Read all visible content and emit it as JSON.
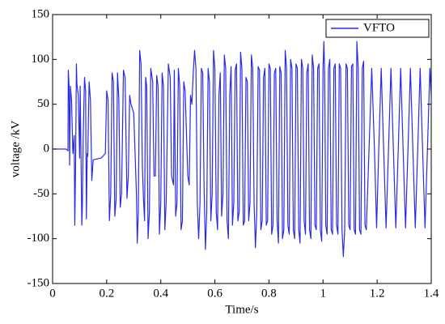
{
  "chart_data": {
    "type": "line",
    "xlabel": "Time/s",
    "ylabel": "voltage /kV",
    "xlim": [
      0,
      1.4
    ],
    "ylim": [
      -150,
      150
    ],
    "xticks": [
      0,
      0.2,
      0.4,
      0.6,
      0.8,
      1,
      1.2,
      1.4
    ],
    "yticks": [
      -150,
      -100,
      -50,
      0,
      50,
      100,
      150
    ],
    "grid": false,
    "legend": "upper right",
    "series": [
      {
        "name": "VFTO",
        "color": "#2a2ae6",
        "x": [
          0,
          0.05,
          0.057,
          0.058,
          0.061,
          0.063,
          0.066,
          0.07,
          0.075,
          0.08,
          0.082,
          0.085,
          0.088,
          0.09,
          0.095,
          0.1,
          0.102,
          0.105,
          0.108,
          0.11,
          0.113,
          0.118,
          0.122,
          0.125,
          0.128,
          0.13,
          0.135,
          0.14,
          0.145,
          0.15,
          0.18,
          0.195,
          0.2,
          0.205,
          0.21,
          0.215,
          0.22,
          0.225,
          0.23,
          0.235,
          0.24,
          0.245,
          0.25,
          0.255,
          0.262,
          0.268,
          0.275,
          0.28,
          0.285,
          0.29,
          0.3,
          0.31,
          0.313,
          0.317,
          0.322,
          0.327,
          0.332,
          0.336,
          0.34,
          0.344,
          0.348,
          0.353,
          0.358,
          0.363,
          0.37,
          0.375,
          0.38,
          0.385,
          0.39,
          0.395,
          0.4,
          0.405,
          0.41,
          0.415,
          0.42,
          0.428,
          0.435,
          0.44,
          0.447,
          0.45,
          0.455,
          0.46,
          0.465,
          0.47,
          0.475,
          0.48,
          0.485,
          0.49,
          0.5,
          0.505,
          0.51,
          0.515,
          0.52,
          0.525,
          0.53,
          0.535,
          0.54,
          0.545,
          0.55,
          0.555,
          0.56,
          0.565,
          0.57,
          0.575,
          0.58,
          0.585,
          0.59,
          0.595,
          0.6,
          0.605,
          0.61,
          0.615,
          0.62,
          0.625,
          0.63,
          0.635,
          0.64,
          0.645,
          0.65,
          0.655,
          0.66,
          0.665,
          0.67,
          0.675,
          0.68,
          0.685,
          0.69,
          0.695,
          0.7,
          0.705,
          0.71,
          0.715,
          0.72,
          0.725,
          0.73,
          0.735,
          0.74,
          0.745,
          0.75,
          0.755,
          0.76,
          0.765,
          0.77,
          0.775,
          0.78,
          0.785,
          0.79,
          0.795,
          0.8,
          0.805,
          0.81,
          0.815,
          0.82,
          0.825,
          0.83,
          0.835,
          0.84,
          0.845,
          0.85,
          0.855,
          0.86,
          0.865,
          0.87,
          0.875,
          0.88,
          0.885,
          0.89,
          0.895,
          0.9,
          0.905,
          0.91,
          0.915,
          0.92,
          0.925,
          0.93,
          0.935,
          0.94,
          0.945,
          0.95,
          0.955,
          0.96,
          0.965,
          0.97,
          0.975,
          0.98,
          0.985,
          0.99,
          0.995,
          1.0,
          1.003,
          1.006,
          1.01,
          1.015,
          1.02,
          1.025,
          1.03,
          1.035,
          1.04,
          1.045,
          1.05,
          1.055,
          1.06,
          1.065,
          1.07,
          1.075,
          1.08,
          1.085,
          1.09,
          1.095,
          1.1,
          1.105,
          1.11,
          1.115,
          1.12,
          1.125,
          1.13,
          1.135,
          1.14,
          1.145,
          1.15,
          1.155,
          1.16,
          1.17,
          1.18,
          1.19,
          1.198,
          1.206,
          1.215,
          1.224,
          1.233,
          1.242,
          1.251,
          1.26,
          1.269,
          1.278,
          1.287,
          1.296,
          1.305,
          1.314,
          1.323,
          1.332,
          1.341,
          1.35,
          1.359,
          1.368,
          1.377,
          1.386,
          1.395,
          1.4
        ],
        "values": [
          0,
          0,
          -2,
          88,
          70,
          -18,
          70,
          55,
          -5,
          15,
          -85,
          -20,
          95,
          72,
          60,
          -10,
          70,
          -5,
          -85,
          -65,
          10,
          80,
          65,
          -78,
          -5,
          -8,
          75,
          55,
          -35,
          -12,
          -10,
          -5,
          65,
          55,
          -80,
          -50,
          85,
          75,
          -75,
          -55,
          85,
          55,
          -65,
          -50,
          88,
          80,
          -55,
          -30,
          60,
          50,
          40,
          -50,
          -105,
          -70,
          110,
          95,
          -20,
          -55,
          -80,
          80,
          70,
          -100,
          -70,
          90,
          75,
          -30,
          -30,
          82,
          70,
          -95,
          -60,
          85,
          70,
          -90,
          -60,
          95,
          80,
          -30,
          -40,
          88,
          -75,
          -60,
          90,
          70,
          -90,
          -80,
          75,
          65,
          -30,
          -40,
          60,
          50,
          85,
          110,
          90,
          -60,
          -100,
          -60,
          90,
          85,
          -40,
          -112,
          -70,
          90,
          75,
          -80,
          -50,
          110,
          90,
          -70,
          -90,
          60,
          85,
          -75,
          -50,
          105,
          90,
          -80,
          -100,
          60,
          92,
          -85,
          -60,
          88,
          95,
          -80,
          -70,
          108,
          90,
          -85,
          -80,
          80,
          75,
          -80,
          -60,
          105,
          90,
          -60,
          -110,
          -70,
          92,
          88,
          -90,
          -80,
          80,
          90,
          -85,
          -80,
          95,
          90,
          -95,
          -85,
          85,
          90,
          -80,
          -105,
          92,
          85,
          -100,
          -90,
          110,
          90,
          -85,
          -95,
          100,
          90,
          -90,
          -100,
          95,
          90,
          -90,
          -105,
          100,
          90,
          -80,
          -95,
          85,
          95,
          -90,
          -100,
          105,
          90,
          -85,
          -90,
          90,
          95,
          -90,
          -103,
          90,
          120,
          85,
          -85,
          -95,
          90,
          100,
          -90,
          -95,
          90,
          95,
          -85,
          -95,
          95,
          90,
          -90,
          -120,
          -90,
          95,
          90,
          -85,
          -90,
          92,
          95,
          -90,
          -95,
          120,
          90,
          -90,
          -95,
          90,
          98,
          -85,
          -90,
          0,
          90,
          0,
          -88,
          0,
          90,
          0,
          -88,
          0,
          90,
          0,
          -88,
          0,
          90,
          0,
          -88,
          0,
          90,
          0,
          -88,
          0,
          90,
          0,
          -88,
          0,
          90,
          60
        ]
      }
    ]
  }
}
